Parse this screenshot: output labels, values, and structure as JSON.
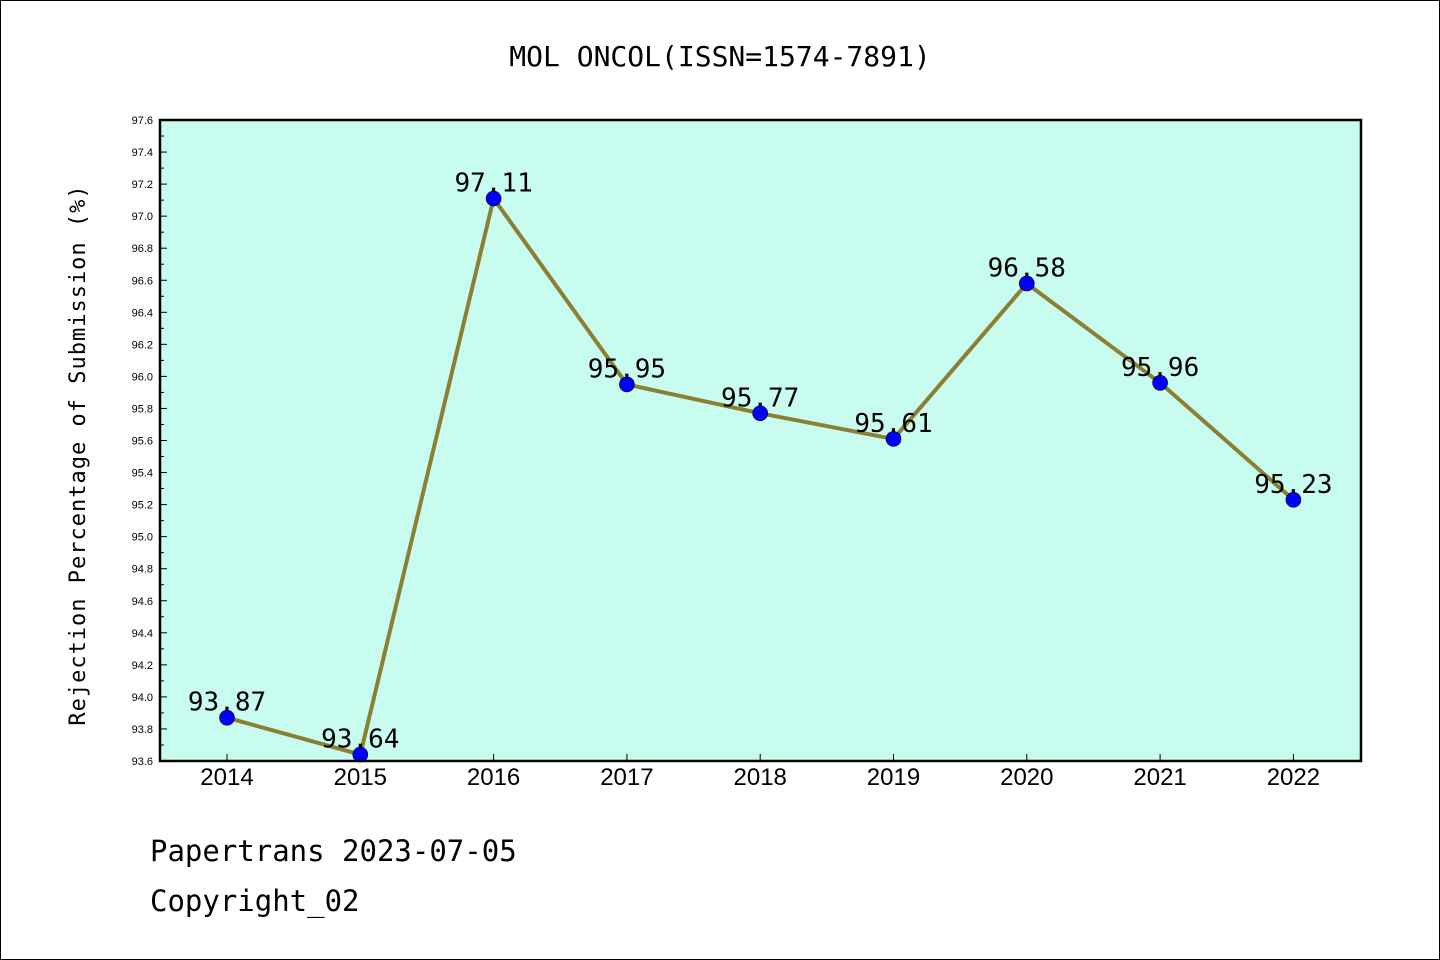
{
  "chart_data": {
    "type": "line",
    "title": "MOL ONCOL(ISSN=1574-7891)",
    "ylabel": "Rejection Percentage of Submission (%)",
    "xlabel": "",
    "categories": [
      "2014",
      "2015",
      "2016",
      "2017",
      "2018",
      "2019",
      "2020",
      "2021",
      "2022"
    ],
    "values": [
      93.87,
      93.64,
      97.11,
      95.95,
      95.77,
      95.61,
      96.58,
      95.96,
      95.23
    ],
    "value_labels": [
      "93.87",
      "93.64",
      "97.11",
      "95.95",
      "95.77",
      "95.61",
      "96.58",
      "95.96",
      "95.23"
    ],
    "ylim": [
      93.6,
      97.6
    ],
    "yticks": [
      "93.6",
      "93.8",
      "94.0",
      "94.2",
      "94.4",
      "94.6",
      "94.8",
      "95.0",
      "95.2",
      "95.4",
      "95.6",
      "95.8",
      "96.0",
      "96.2",
      "96.4",
      "96.6",
      "96.8",
      "97.0",
      "97.2",
      "97.4",
      "97.6"
    ],
    "grid": false,
    "colors": {
      "plot_background": "#c8fcee",
      "line": "#8b8032",
      "marker": "#0000ff"
    }
  },
  "footer": {
    "line1": "Papertrans 2023-07-05",
    "line2": "Copyright_02"
  }
}
